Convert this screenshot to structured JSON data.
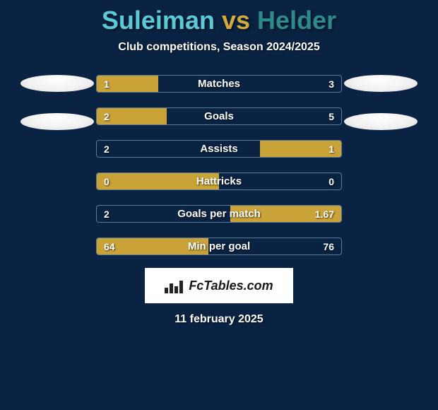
{
  "title": {
    "player_left": "Suleiman",
    "vs": "vs",
    "player_right": "Helder"
  },
  "subtitle": "Club competitions, Season 2024/2025",
  "colors": {
    "background": "#0a2342",
    "bar_fill": "#c9a338",
    "bar_border": "#5a7a9a",
    "text": "#ffffff",
    "title_left": "#5cc9d6",
    "title_right": "#2e8b8b",
    "title_vs": "#d4a93f"
  },
  "stats": [
    {
      "label": "Matches",
      "left_value": "1",
      "right_value": "3",
      "left_fill_pct": 25,
      "right_fill_pct": 0,
      "fill_side": "left"
    },
    {
      "label": "Goals",
      "left_value": "2",
      "right_value": "5",
      "left_fill_pct": 28.5,
      "right_fill_pct": 0,
      "fill_side": "left"
    },
    {
      "label": "Assists",
      "left_value": "2",
      "right_value": "1",
      "left_fill_pct": 0,
      "right_fill_pct": 33.3,
      "fill_side": "right"
    },
    {
      "label": "Hattricks",
      "left_value": "0",
      "right_value": "0",
      "left_fill_pct": 50,
      "right_fill_pct": 0,
      "fill_side": "left"
    },
    {
      "label": "Goals per match",
      "left_value": "2",
      "right_value": "1.67",
      "left_fill_pct": 0,
      "right_fill_pct": 45.5,
      "fill_side": "right"
    },
    {
      "label": "Min per goal",
      "left_value": "64",
      "right_value": "76",
      "left_fill_pct": 45.7,
      "right_fill_pct": 0,
      "fill_side": "left"
    }
  ],
  "watermark": "FcTables.com",
  "date": "11 february 2025"
}
